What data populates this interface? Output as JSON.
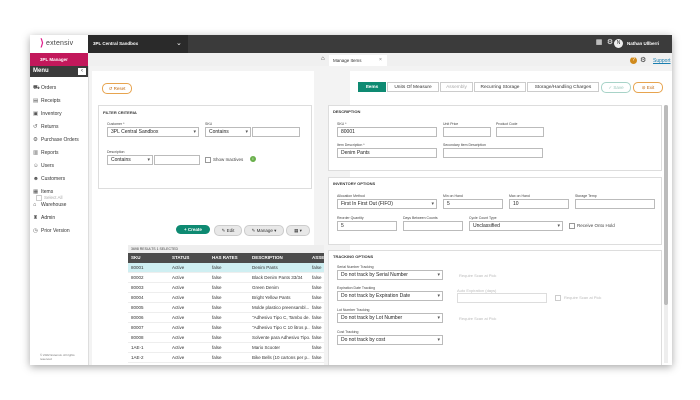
{
  "brand": {
    "logo_mark": "⟩",
    "logo_text": "extensiv",
    "accent": "#e01e8c"
  },
  "header": {
    "environment": "3PL Central Sandbox",
    "user": "Nathan Ullberri",
    "avatar_initial": "N"
  },
  "sidebar": {
    "badge": "3PL Manager",
    "menu_title": "Menu",
    "items": [
      {
        "label": "Orders",
        "icon": "cart-icon"
      },
      {
        "label": "Receipts",
        "icon": "receipt-icon"
      },
      {
        "label": "Inventory",
        "icon": "box-icon"
      },
      {
        "label": "Returns",
        "icon": "return-icon"
      },
      {
        "label": "Purchase Orders",
        "icon": "gear-icon"
      },
      {
        "label": "Reports",
        "icon": "report-icon"
      },
      {
        "label": "Users",
        "icon": "user-icon"
      },
      {
        "label": "Customers",
        "icon": "customers-icon"
      },
      {
        "label": "Items",
        "icon": "items-icon"
      },
      {
        "label": "Warehouse",
        "icon": "warehouse-icon"
      },
      {
        "label": "Admin",
        "icon": "admin-icon"
      },
      {
        "label": "Prior Version",
        "icon": "prior-icon"
      }
    ],
    "copyright": "© 2022 Extensiv. All rights reserved"
  },
  "page_tab": {
    "label": "Manage Items",
    "close": "×"
  },
  "support_link": "Support",
  "filter": {
    "reset": "Reset",
    "title": "FILTER CRITERIA",
    "customer_label": "Customer *",
    "customer_value": "3PL Central Sandbox",
    "sku_label": "SKU",
    "sku_op": "Contains",
    "desc_label": "Description",
    "desc_op": "Contains",
    "show_inactives": "Show Inactives"
  },
  "actions": {
    "select_all": "Select All",
    "create": "+ Create",
    "edit": "✎ Edit",
    "manage": "✎ Manage ▾",
    "columns": "▦ ▾"
  },
  "table": {
    "info": "3698 RESULTS   1 SELECTED",
    "columns": [
      "SKU",
      "STATUS",
      "HAS RATES",
      "DESCRIPTION",
      "ASSEM"
    ],
    "rows": [
      [
        "80001",
        "Active",
        "false",
        "Denim Pants",
        "false"
      ],
      [
        "80002",
        "Active",
        "false",
        "Black Denim Pants 33/34",
        "false"
      ],
      [
        "80003",
        "Active",
        "false",
        "Green Denim",
        "false"
      ],
      [
        "80004",
        "Active",
        "false",
        "Bright Yellow Pants",
        "false"
      ],
      [
        "80005",
        "Active",
        "false",
        "Molde plastico preensambl...",
        "false"
      ],
      [
        "80006",
        "Active",
        "false",
        "\"Adhesivo Tipo C, Tambo de...",
        "false"
      ],
      [
        "80007",
        "Active",
        "false",
        "\"Adhesivo Tipo C 10 litros p...",
        "false"
      ],
      [
        "80008",
        "Active",
        "false",
        "Solvente para Adhesivo Tipo...",
        "false"
      ],
      [
        "1AE-1",
        "Active",
        "false",
        "Mario Scooter",
        "false"
      ],
      [
        "1AE-2",
        "Active",
        "false",
        "Bike Bells (10 cartons per p...",
        "false"
      ],
      [
        "1AE-3",
        "Active",
        "false",
        "Ladies Beach Cover Ups (24...",
        "false"
      ]
    ]
  },
  "item_tabs": [
    "Items",
    "Units Of Measure",
    "Assembly",
    "Recurring Storage",
    "Storage/Handling Charges"
  ],
  "buttons": {
    "save": "Save",
    "exit": "Exit"
  },
  "description_section": {
    "title": "DESCRIPTION",
    "sku_label": "SKU *",
    "sku_value": "80001",
    "unit_price_label": "Unit Price",
    "product_code_label": "Product Code",
    "item_desc_label": "Item Description *",
    "item_desc_value": "Denim Pants",
    "secondary_label": "Secondary Item Description"
  },
  "inventory_section": {
    "title": "INVENTORY OPTIONS",
    "allocation_label": "Allocation Method",
    "allocation_value": "First In First Out (FIFO)",
    "min_label": "Min on Hand",
    "min_value": "5",
    "max_label": "Max on Hand",
    "max_value": "10",
    "storage_label": "Storage Temp",
    "reorder_label": "Reorder Quantity",
    "reorder_value": "5",
    "cycle_label": "Days Between Counts",
    "cyclecount_label": "Cycle Count Type",
    "cyclecount_value": "Unclassified",
    "receive_hold": "Receive Onto Hold"
  },
  "tracking_section": {
    "title": "TRACKING OPTIONS",
    "serial_label": "Serial Number Tracking",
    "serial_value": "Do not track by Serial Number",
    "serial_scan": "Require Scan at Pick",
    "exp_label": "Expiration Date Tracking",
    "exp_value": "Do not track by Expiration Date",
    "exp_hint": "Auto Expiration (days)",
    "exp_scan": "Require Scan at Pick",
    "lot_label": "Lot Number Tracking",
    "lot_value": "Do not track by Lot Number",
    "lot_scan": "Require Scan at Pick",
    "cost_label": "Cost Tracking",
    "cost_value": "Do not track by cost"
  }
}
